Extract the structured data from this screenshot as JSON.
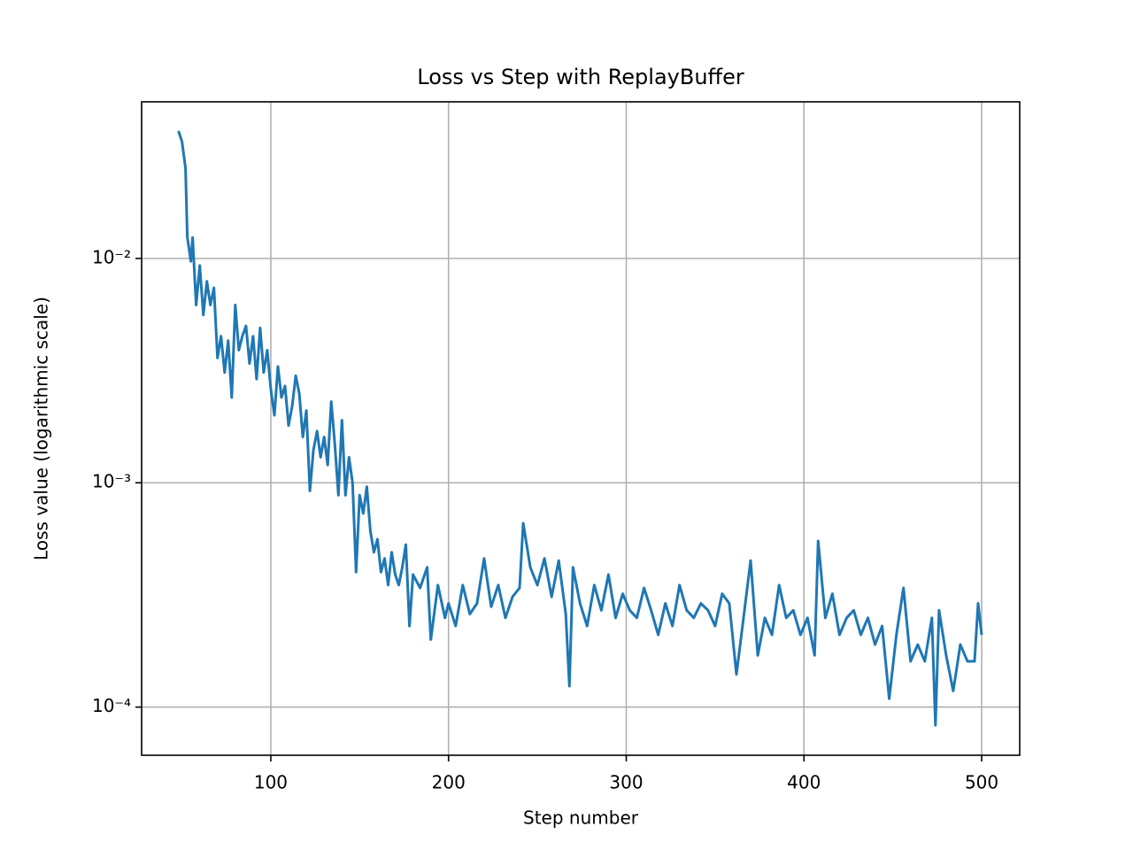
{
  "chart_data": {
    "type": "line",
    "title": "Loss vs Step with ReplayBuffer",
    "x_label": "Step number",
    "y_label": "Loss value (logarithmic scale)",
    "y_scale": "log",
    "grid": true,
    "xlim": [
      27.3,
      521.4
    ],
    "xticks": [
      100,
      200,
      300,
      400,
      500
    ],
    "ylim": [
      6.1e-05,
      0.0499
    ],
    "yticks": [
      {
        "value": 0.0001,
        "label": "10⁻⁴"
      },
      {
        "value": 0.001,
        "label": "10⁻³"
      },
      {
        "value": 0.01,
        "label": "10⁻²"
      }
    ],
    "x": [
      48,
      50,
      52,
      53,
      55,
      56,
      58,
      60,
      62,
      64,
      66,
      68,
      70,
      72,
      74,
      76,
      78,
      80,
      82,
      84,
      86,
      88,
      90,
      92,
      94,
      96,
      98,
      100,
      102,
      104,
      106,
      108,
      110,
      112,
      114,
      116,
      118,
      120,
      122,
      124,
      126,
      128,
      130,
      132,
      134,
      136,
      138,
      140,
      142,
      144,
      146,
      148,
      150,
      152,
      154,
      156,
      158,
      160,
      162,
      164,
      166,
      168,
      170,
      172,
      174,
      176,
      178,
      180,
      184,
      188,
      190,
      194,
      198,
      200,
      204,
      208,
      212,
      216,
      220,
      224,
      228,
      232,
      236,
      240,
      242,
      246,
      250,
      254,
      258,
      262,
      266,
      268,
      270,
      274,
      278,
      282,
      286,
      290,
      294,
      298,
      302,
      306,
      310,
      314,
      318,
      322,
      326,
      330,
      334,
      338,
      342,
      346,
      350,
      354,
      358,
      362,
      366,
      370,
      374,
      378,
      382,
      386,
      390,
      394,
      398,
      402,
      406,
      408,
      412,
      416,
      420,
      424,
      428,
      432,
      436,
      440,
      444,
      448,
      452,
      456,
      460,
      464,
      468,
      472,
      474,
      476,
      480,
      484,
      488,
      492,
      496,
      498,
      500
    ],
    "series": [
      {
        "name": "loss",
        "color": "#1f77b4",
        "values": [
          0.037,
          0.0332,
          0.0252,
          0.0125,
          0.0097,
          0.0124,
          0.0062,
          0.0093,
          0.0056,
          0.0079,
          0.0062,
          0.0074,
          0.0036,
          0.0045,
          0.0031,
          0.0043,
          0.0024,
          0.0062,
          0.0039,
          0.0045,
          0.005,
          0.0034,
          0.0045,
          0.0029,
          0.0049,
          0.0031,
          0.0039,
          0.0026,
          0.002,
          0.0033,
          0.0024,
          0.0027,
          0.0018,
          0.0022,
          0.003,
          0.0025,
          0.0016,
          0.0021,
          0.00092,
          0.0014,
          0.0017,
          0.0013,
          0.0016,
          0.0012,
          0.0023,
          0.0015,
          0.00088,
          0.0019,
          0.00088,
          0.0013,
          0.001,
          0.0004,
          0.00088,
          0.00073,
          0.00096,
          0.00061,
          0.00049,
          0.00056,
          0.0004,
          0.00046,
          0.00035,
          0.00049,
          0.00039,
          0.00035,
          0.00042,
          0.00053,
          0.00023,
          0.00039,
          0.00034,
          0.00042,
          0.0002,
          0.00035,
          0.00025,
          0.00029,
          0.00023,
          0.00035,
          0.00026,
          0.00029,
          0.00046,
          0.00028,
          0.00035,
          0.00025,
          0.00031,
          0.00034,
          0.00066,
          0.00042,
          0.00035,
          0.00046,
          0.00031,
          0.00045,
          0.00026,
          0.000124,
          0.00042,
          0.00029,
          0.00023,
          0.00035,
          0.00027,
          0.00039,
          0.00025,
          0.00032,
          0.00027,
          0.00025,
          0.00034,
          0.00027,
          0.00021,
          0.00029,
          0.00023,
          0.00035,
          0.00027,
          0.00025,
          0.00029,
          0.00027,
          0.00023,
          0.00032,
          0.00029,
          0.00014,
          0.00025,
          0.00045,
          0.00017,
          0.00025,
          0.00021,
          0.00035,
          0.00025,
          0.00027,
          0.00021,
          0.00025,
          0.00017,
          0.00055,
          0.00025,
          0.00032,
          0.00021,
          0.00025,
          0.00027,
          0.00021,
          0.00025,
          0.00019,
          0.00023,
          0.000109,
          0.00021,
          0.00034,
          0.00016,
          0.00019,
          0.00016,
          0.00025,
          8.3e-05,
          0.00027,
          0.00017,
          0.000118,
          0.00019,
          0.00016,
          0.00016,
          0.00029,
          0.00021
        ]
      }
    ]
  }
}
